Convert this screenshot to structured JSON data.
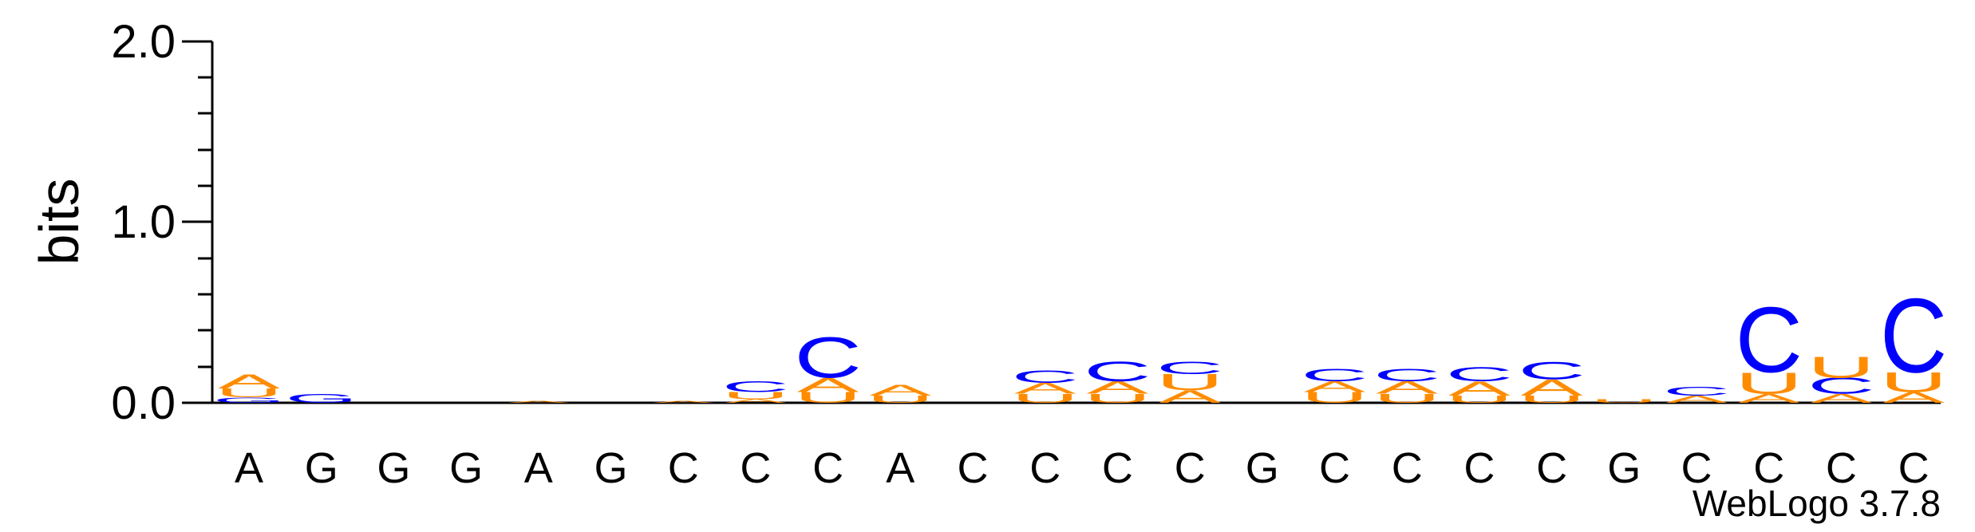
{
  "chart_data": {
    "type": "sequence-logo",
    "ylabel": "bits",
    "ylim": [
      0,
      2.0
    ],
    "yticks": [
      "0.0",
      "1.0",
      "2.0"
    ],
    "categories": [
      "A",
      "G",
      "G",
      "G",
      "A",
      "G",
      "C",
      "C",
      "C",
      "A",
      "C",
      "C",
      "C",
      "C",
      "G",
      "C",
      "C",
      "C",
      "C",
      "G",
      "C",
      "C",
      "C",
      "C"
    ],
    "credit": "WebLogo 3.7.8",
    "colors": {
      "C": "#0000ff",
      "A": "#ff8c00",
      "U": "#ff8c00",
      "G": "#0000ff"
    },
    "stacks": [
      [
        [
          "G",
          0.03
        ],
        [
          "U",
          0.05
        ],
        [
          "A",
          0.08
        ]
      ],
      [
        [
          "G",
          0.05
        ]
      ],
      [],
      [],
      [
        [
          "A",
          0.01
        ]
      ],
      [],
      [
        [
          "A",
          0.01
        ]
      ],
      [
        [
          "A",
          0.02
        ],
        [
          "U",
          0.04
        ],
        [
          "C",
          0.06
        ]
      ],
      [
        [
          "U",
          0.06
        ],
        [
          "A",
          0.08
        ],
        [
          "C",
          0.23
        ]
      ],
      [
        [
          "U",
          0.04
        ],
        [
          "A",
          0.06
        ]
      ],
      [],
      [
        [
          "U",
          0.05
        ],
        [
          "A",
          0.06
        ],
        [
          "C",
          0.07
        ]
      ],
      [
        [
          "U",
          0.05
        ],
        [
          "A",
          0.07
        ],
        [
          "C",
          0.11
        ]
      ],
      [
        [
          "A",
          0.07
        ],
        [
          "U",
          0.09
        ],
        [
          "C",
          0.07
        ]
      ],
      [],
      [
        [
          "U",
          0.06
        ],
        [
          "A",
          0.06
        ],
        [
          "C",
          0.07
        ]
      ],
      [
        [
          "U",
          0.05
        ],
        [
          "A",
          0.07
        ],
        [
          "C",
          0.07
        ]
      ],
      [
        [
          "U",
          0.04
        ],
        [
          "A",
          0.08
        ],
        [
          "C",
          0.08
        ]
      ],
      [
        [
          "U",
          0.04
        ],
        [
          "A",
          0.09
        ],
        [
          "C",
          0.1
        ]
      ],
      [
        [
          "U",
          0.02
        ]
      ],
      [
        [
          "A",
          0.04
        ],
        [
          "C",
          0.05
        ]
      ],
      [
        [
          "A",
          0.05
        ],
        [
          "U",
          0.12
        ],
        [
          "C",
          0.37
        ]
      ],
      [
        [
          "A",
          0.05
        ],
        [
          "C",
          0.09
        ],
        [
          "U",
          0.12
        ]
      ],
      [
        [
          "A",
          0.06
        ],
        [
          "U",
          0.11
        ],
        [
          "C",
          0.42
        ]
      ]
    ]
  }
}
